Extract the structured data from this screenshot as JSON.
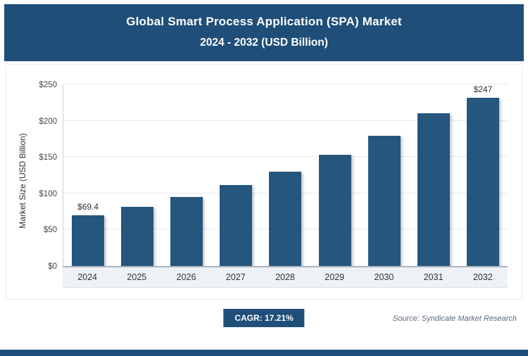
{
  "header": {
    "title_line1": "Global Smart Process Application (SPA) Market",
    "title_line2": "2024 - 2032 (USD Billion)"
  },
  "chart_data": {
    "type": "bar",
    "title": "Global Smart Process Application (SPA) Market 2024 - 2032 (USD Billion)",
    "categories": [
      "2024",
      "2025",
      "2026",
      "2027",
      "2028",
      "2029",
      "2030",
      "2031",
      "2032"
    ],
    "values": [
      69.4,
      81,
      95,
      111,
      130,
      153,
      179,
      210,
      247
    ],
    "bar_labels": [
      "$69.4",
      "",
      "",
      "",
      "",
      "",
      "",
      "",
      "$247"
    ],
    "xlabel": "",
    "ylabel": "Market Size (USD Billion)",
    "ylim": [
      0,
      250
    ],
    "ytick_step": 50,
    "ytick_labels": [
      "$0",
      "$50",
      "$100",
      "$150",
      "$200",
      "$250"
    ],
    "grid": true,
    "legend": "none",
    "bar_color": "#25567E"
  },
  "footer": {
    "cagr_label": "CAGR: 17.21%",
    "source_text": "Source: Syndicate Market Research"
  },
  "colors": {
    "banner": "#1F4E79",
    "bar": "#25567E",
    "gridline": "#e3e8ee",
    "axis_strip_bg": "#eef1f5"
  }
}
